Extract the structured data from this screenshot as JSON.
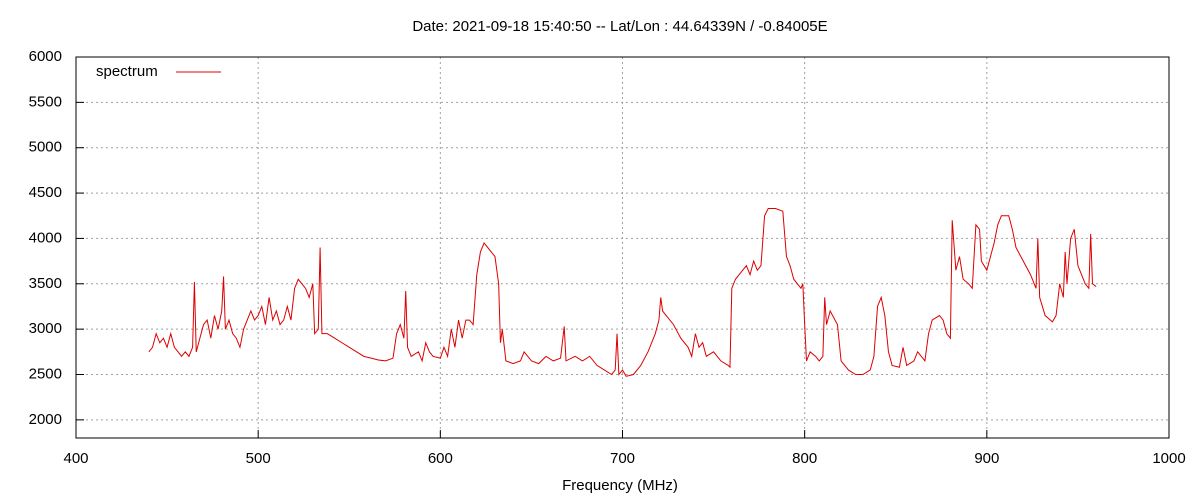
{
  "chart_data": {
    "type": "line",
    "title": "Date: 2021-09-18 15:40:50  --  Lat/Lon : 44.64339N / -0.84005E",
    "x_label": "Frequency (MHz)",
    "xlim": [
      400,
      1000
    ],
    "xticks": [
      400,
      500,
      600,
      700,
      800,
      900,
      1000
    ],
    "ylim": [
      1800,
      6000
    ],
    "yticks": [
      2000,
      2500,
      3000,
      3500,
      4000,
      4500,
      5000,
      5500,
      6000
    ],
    "grid": true,
    "legend": "top-left",
    "x": [
      440,
      442,
      444,
      446,
      448,
      450,
      452,
      454,
      456,
      458,
      460,
      462,
      464,
      465,
      466,
      468,
      470,
      472,
      474,
      476,
      478,
      480,
      481,
      482,
      484,
      486,
      488,
      490,
      492,
      494,
      496,
      498,
      500,
      502,
      504,
      506,
      508,
      510,
      512,
      514,
      516,
      518,
      520,
      522,
      524,
      526,
      528,
      530,
      531,
      533,
      534,
      535,
      538,
      542,
      546,
      550,
      554,
      558,
      562,
      566,
      570,
      574,
      576,
      578,
      580,
      581,
      582,
      584,
      588,
      590,
      592,
      594,
      596,
      600,
      602,
      604,
      606,
      608,
      610,
      612,
      614,
      616,
      618,
      620,
      622,
      624,
      626,
      628,
      630,
      632,
      633,
      634,
      636,
      640,
      644,
      646,
      648,
      650,
      654,
      658,
      662,
      666,
      668,
      669,
      674,
      678,
      682,
      686,
      690,
      694,
      696,
      697,
      698,
      700,
      702,
      706,
      710,
      714,
      718,
      720,
      721,
      722,
      724,
      728,
      732,
      736,
      738,
      740,
      742,
      744,
      746,
      750,
      754,
      758,
      759,
      760,
      762,
      766,
      768,
      770,
      772,
      774,
      776,
      778,
      780,
      784,
      788,
      790,
      792,
      794,
      796,
      798,
      799,
      800,
      801,
      803,
      806,
      808,
      810,
      811,
      812,
      814,
      818,
      820,
      824,
      828,
      832,
      836,
      838,
      840,
      842,
      844,
      846,
      848,
      852,
      854,
      856,
      860,
      862,
      864,
      866,
      868,
      870,
      874,
      876,
      878,
      880,
      881,
      883,
      885,
      887,
      890,
      892,
      894,
      896,
      897,
      900,
      902,
      904,
      906,
      908,
      912,
      914,
      916,
      920,
      924,
      926,
      927,
      928,
      929,
      932,
      936,
      938,
      940,
      942,
      943,
      944,
      946,
      948,
      950,
      952,
      954,
      956,
      957,
      958,
      960
    ],
    "series": [
      {
        "name": "spectrum",
        "color": "#dd0000",
        "values": [
          2750,
          2800,
          2950,
          2850,
          2900,
          2800,
          2950,
          2800,
          2750,
          2700,
          2750,
          2700,
          2800,
          3520,
          2750,
          2900,
          3050,
          3100,
          2900,
          3150,
          3000,
          3200,
          3580,
          3000,
          3100,
          2950,
          2900,
          2800,
          3000,
          3100,
          3200,
          3100,
          3150,
          3250,
          3050,
          3350,
          3100,
          3200,
          3050,
          3100,
          3250,
          3100,
          3450,
          3550,
          3500,
          3450,
          3350,
          3500,
          2950,
          3000,
          3900,
          2950,
          2950,
          2900,
          2850,
          2800,
          2750,
          2700,
          2680,
          2660,
          2650,
          2680,
          2950,
          3050,
          2900,
          3420,
          2800,
          2700,
          2750,
          2650,
          2850,
          2750,
          2700,
          2680,
          2800,
          2700,
          3000,
          2800,
          3100,
          2900,
          3100,
          3100,
          3050,
          3600,
          3850,
          3950,
          3900,
          3850,
          3800,
          3500,
          2850,
          3000,
          2650,
          2620,
          2650,
          2750,
          2700,
          2650,
          2620,
          2700,
          2650,
          2680,
          3030,
          2650,
          2700,
          2650,
          2700,
          2600,
          2550,
          2500,
          2550,
          2950,
          2500,
          2550,
          2480,
          2500,
          2600,
          2750,
          2950,
          3100,
          3350,
          3200,
          3150,
          3050,
          2900,
          2800,
          2700,
          2950,
          2800,
          2850,
          2700,
          2750,
          2650,
          2600,
          2580,
          3450,
          3550,
          3650,
          3700,
          3600,
          3750,
          3650,
          3700,
          4250,
          4330,
          4330,
          4300,
          3800,
          3700,
          3550,
          3500,
          3450,
          3500,
          3050,
          2650,
          2750,
          2700,
          2650,
          2700,
          3350,
          3050,
          3200,
          3050,
          2650,
          2550,
          2500,
          2500,
          2550,
          2700,
          3250,
          3350,
          3150,
          2750,
          2600,
          2580,
          2800,
          2600,
          2650,
          2750,
          2700,
          2650,
          2950,
          3100,
          3150,
          3100,
          2950,
          2900,
          4200,
          3650,
          3800,
          3550,
          3500,
          3450,
          4150,
          4100,
          3750,
          3650,
          3800,
          3950,
          4150,
          4250,
          4250,
          4100,
          3900,
          3750,
          3600,
          3500,
          3450,
          4000,
          3350,
          3150,
          3080,
          3150,
          3500,
          3350,
          3850,
          3500,
          4000,
          4100,
          3700,
          3600,
          3500,
          3450,
          4050,
          3500,
          3470
        ]
      }
    ]
  }
}
